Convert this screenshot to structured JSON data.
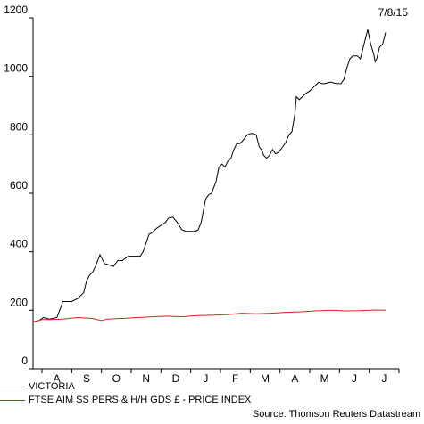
{
  "date_label": "7/8/15",
  "source": "Source: Thomson Reuters Datastream",
  "chart_data": {
    "type": "line",
    "ylim": [
      0,
      1200
    ],
    "yticks": [
      0,
      200,
      400,
      600,
      800,
      1000,
      1200
    ],
    "xlim": [
      0,
      12.3
    ],
    "month_labels": [
      "A",
      "S",
      "O",
      "N",
      "D",
      "J",
      "F",
      "M",
      "A",
      "M",
      "J",
      "J"
    ],
    "grid": false,
    "legend_position": "bottom-left",
    "series": [
      {
        "name": "VICTORIA",
        "color": "#000000",
        "points": [
          [
            0.0,
            160
          ],
          [
            0.2,
            165
          ],
          [
            0.35,
            175
          ],
          [
            0.55,
            170
          ],
          [
            0.8,
            175
          ],
          [
            0.95,
            215
          ],
          [
            1.0,
            230
          ],
          [
            1.3,
            230
          ],
          [
            1.5,
            240
          ],
          [
            1.7,
            260
          ],
          [
            1.8,
            300
          ],
          [
            1.9,
            320
          ],
          [
            2.0,
            330
          ],
          [
            2.1,
            350
          ],
          [
            2.25,
            390
          ],
          [
            2.3,
            380
          ],
          [
            2.4,
            360
          ],
          [
            2.55,
            355
          ],
          [
            2.7,
            350
          ],
          [
            2.85,
            370
          ],
          [
            3.0,
            370
          ],
          [
            3.2,
            385
          ],
          [
            3.4,
            385
          ],
          [
            3.6,
            385
          ],
          [
            3.7,
            400
          ],
          [
            3.8,
            430
          ],
          [
            3.9,
            460
          ],
          [
            4.0,
            465
          ],
          [
            4.15,
            480
          ],
          [
            4.3,
            490
          ],
          [
            4.45,
            500
          ],
          [
            4.55,
            515
          ],
          [
            4.7,
            518
          ],
          [
            4.85,
            500
          ],
          [
            5.0,
            475
          ],
          [
            5.15,
            470
          ],
          [
            5.3,
            470
          ],
          [
            5.45,
            470
          ],
          [
            5.55,
            475
          ],
          [
            5.65,
            500
          ],
          [
            5.8,
            580
          ],
          [
            5.9,
            595
          ],
          [
            6.0,
            600
          ],
          [
            6.15,
            640
          ],
          [
            6.25,
            690
          ],
          [
            6.35,
            700
          ],
          [
            6.45,
            690
          ],
          [
            6.55,
            710
          ],
          [
            6.65,
            720
          ],
          [
            6.75,
            750
          ],
          [
            6.85,
            770
          ],
          [
            6.95,
            770
          ],
          [
            7.05,
            780
          ],
          [
            7.2,
            800
          ],
          [
            7.35,
            805
          ],
          [
            7.5,
            800
          ],
          [
            7.6,
            760
          ],
          [
            7.7,
            745
          ],
          [
            7.75,
            730
          ],
          [
            7.85,
            720
          ],
          [
            7.95,
            730
          ],
          [
            8.05,
            750
          ],
          [
            8.15,
            735
          ],
          [
            8.25,
            740
          ],
          [
            8.4,
            760
          ],
          [
            8.5,
            775
          ],
          [
            8.6,
            800
          ],
          [
            8.7,
            810
          ],
          [
            8.8,
            870
          ],
          [
            8.85,
            930
          ],
          [
            8.95,
            920
          ],
          [
            9.05,
            930
          ],
          [
            9.15,
            940
          ],
          [
            9.3,
            950
          ],
          [
            9.4,
            960
          ],
          [
            9.5,
            970
          ],
          [
            9.6,
            980
          ],
          [
            9.7,
            975
          ],
          [
            9.8,
            975
          ],
          [
            10.0,
            980
          ],
          [
            10.2,
            975
          ],
          [
            10.35,
            975
          ],
          [
            10.45,
            990
          ],
          [
            10.55,
            1030
          ],
          [
            10.65,
            1060
          ],
          [
            10.75,
            1070
          ],
          [
            10.9,
            1070
          ],
          [
            11.0,
            1060
          ],
          [
            11.1,
            1100
          ],
          [
            11.25,
            1160
          ],
          [
            11.35,
            1110
          ],
          [
            11.45,
            1075
          ],
          [
            11.5,
            1050
          ],
          [
            11.55,
            1060
          ],
          [
            11.65,
            1100
          ],
          [
            11.75,
            1110
          ],
          [
            11.85,
            1150
          ]
        ]
      },
      {
        "name": "FTSE AIM SS PERS & H/H GDS £ - PRICE INDEX",
        "color": "#e02020",
        "points": [
          [
            0.0,
            160
          ],
          [
            0.3,
            168
          ],
          [
            0.6,
            168
          ],
          [
            1.0,
            170
          ],
          [
            1.5,
            175
          ],
          [
            2.0,
            172
          ],
          [
            2.3,
            165
          ],
          [
            2.5,
            170
          ],
          [
            3.0,
            172
          ],
          [
            3.5,
            175
          ],
          [
            4.0,
            178
          ],
          [
            4.5,
            180
          ],
          [
            5.0,
            178
          ],
          [
            5.5,
            182
          ],
          [
            6.0,
            183
          ],
          [
            6.5,
            185
          ],
          [
            7.0,
            190
          ],
          [
            7.5,
            188
          ],
          [
            8.0,
            190
          ],
          [
            8.5,
            193
          ],
          [
            9.0,
            195
          ],
          [
            9.5,
            198
          ],
          [
            10.0,
            200
          ],
          [
            10.5,
            198
          ],
          [
            11.0,
            199
          ],
          [
            11.5,
            201
          ],
          [
            11.85,
            200
          ]
        ]
      }
    ]
  }
}
